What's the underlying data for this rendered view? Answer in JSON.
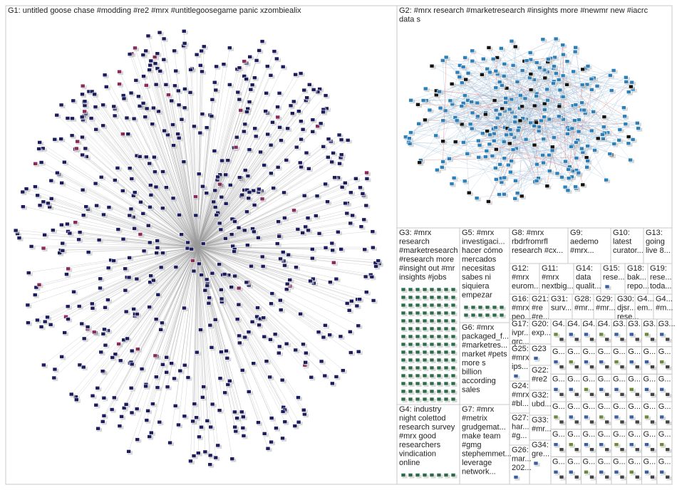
{
  "groups": [
    {
      "lines": [
        "G1: untitled goose chase #modding #re2 #mrx #untitlegoosegame panic xzombiealix"
      ]
    },
    {
      "lines": [
        "G2: #mrx research #marketresearch #insights more #newmr new #iacrc",
        "data s"
      ]
    },
    {
      "lines": [
        "G3: #mrx",
        "research",
        "#marketresearch",
        "#research more",
        "#insight out #mr",
        "insights #jobs"
      ]
    },
    {
      "lines": [
        "G5: #mrx",
        "investigaci...",
        "hacer cómo",
        "mercados",
        "necesitas",
        "sabes ni",
        "siquiera",
        "empezar"
      ]
    },
    {
      "lines": [
        "G8: #mrx",
        "rbdrfromrfl",
        "research #cx..."
      ]
    },
    {
      "lines": [
        "G9:",
        "aedemo",
        "#mrx..."
      ]
    },
    {
      "lines": [
        "G10:",
        "latest",
        "curator..."
      ]
    },
    {
      "lines": [
        "G13:",
        "going",
        "live 8..."
      ]
    },
    {
      "lines": [
        "G6: #mrx",
        "packaged_f...",
        "#marketres...",
        "market #pets",
        "more s",
        "billion",
        "according",
        "sales"
      ]
    },
    {
      "lines": [
        "G12:",
        "#mrx",
        "eurom..."
      ]
    },
    {
      "lines": [
        "G11:",
        "#mrx",
        "nextbig..."
      ]
    },
    {
      "lines": [
        "G14:",
        "data",
        "qualit..."
      ]
    },
    {
      "lines": [
        "G15:",
        "rese..."
      ]
    },
    {
      "lines": [
        "G18:",
        "bak...",
        "repo..."
      ]
    },
    {
      "lines": [
        "G19:",
        "rese...",
        "toda..."
      ]
    },
    {
      "lines": [
        "G16:",
        "#mrx",
        "peo..."
      ]
    },
    {
      "lines": [
        "G21:",
        "#re",
        "#re..."
      ]
    },
    {
      "lines": [
        "G31:",
        "surv..."
      ]
    },
    {
      "lines": [
        "G28:",
        "#mr..."
      ]
    },
    {
      "lines": [
        "G29:",
        "#mr..."
      ]
    },
    {
      "lines": [
        "G30:",
        "djsr...",
        "rese..."
      ]
    },
    {
      "lines": [
        "G4...",
        "em..."
      ]
    },
    {
      "lines": [
        "G4...",
        "#m..."
      ]
    },
    {
      "lines": [
        "G17:",
        "ivpr...",
        "qrc..."
      ]
    },
    {
      "lines": [
        "G20:",
        "exp..."
      ]
    },
    {
      "lines": [
        "G23"
      ]
    },
    {
      "lines": [
        "G25:",
        "#mrx",
        "ips..."
      ]
    },
    {
      "lines": [
        "G22:",
        "#re2"
      ]
    },
    {
      "lines": [
        "G24:",
        "#mrx",
        "#bl..."
      ]
    },
    {
      "lines": [
        "G32:",
        "ubd..."
      ]
    },
    {
      "lines": [
        "G27:",
        "har...",
        "#g..."
      ]
    },
    {
      "lines": [
        "G33:",
        "#mr..."
      ]
    },
    {
      "lines": [
        "G26:",
        "mar...",
        "202..."
      ]
    },
    {
      "lines": [
        "G34:",
        "gre..."
      ]
    },
    {
      "lines": [
        "G4: industry",
        "night colettod",
        "research survey",
        "#mrx good",
        "researchers",
        "vindication",
        "online"
      ]
    },
    {
      "lines": [
        "G7: #mrx",
        "#metrix",
        "grudgemat...",
        "make team",
        "#gmg",
        "stephemmet...",
        "leverage",
        "network..."
      ]
    }
  ],
  "mini_groups": [
    "G4...",
    "G4...",
    "G4...",
    "G4...",
    "G3...",
    "G3...",
    "G3...",
    "G3...",
    "G...",
    "G...",
    "G...",
    "G...",
    "G...",
    "G...",
    "G...",
    "G...",
    "G...",
    "G...",
    "G...",
    "G...",
    "G...",
    "G...",
    "G...",
    "G...",
    "G...",
    "G...",
    "G...",
    "G...",
    "G...",
    "G...",
    "G...",
    "G...",
    "G...",
    "G...",
    "G...",
    "G...",
    "G...",
    "G...",
    "G...",
    "G...",
    "G...",
    "G...",
    "G...",
    "G...",
    "G...",
    "G...",
    "G...",
    "G..."
  ]
}
